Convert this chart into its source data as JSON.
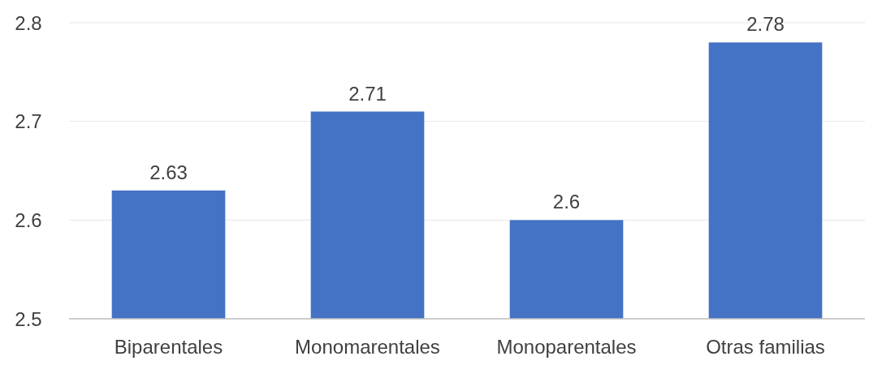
{
  "chart_data": {
    "type": "bar",
    "categories": [
      "Biparentales",
      "Monomarentales",
      "Monoparentales",
      "Otras familias"
    ],
    "values": [
      2.63,
      2.71,
      2.6,
      2.78
    ],
    "color": "#4472c4",
    "ylim": [
      2.5,
      2.8
    ],
    "yticks": [
      2.5,
      2.6,
      2.7,
      2.8
    ],
    "grid": "y",
    "data_labels": true
  }
}
